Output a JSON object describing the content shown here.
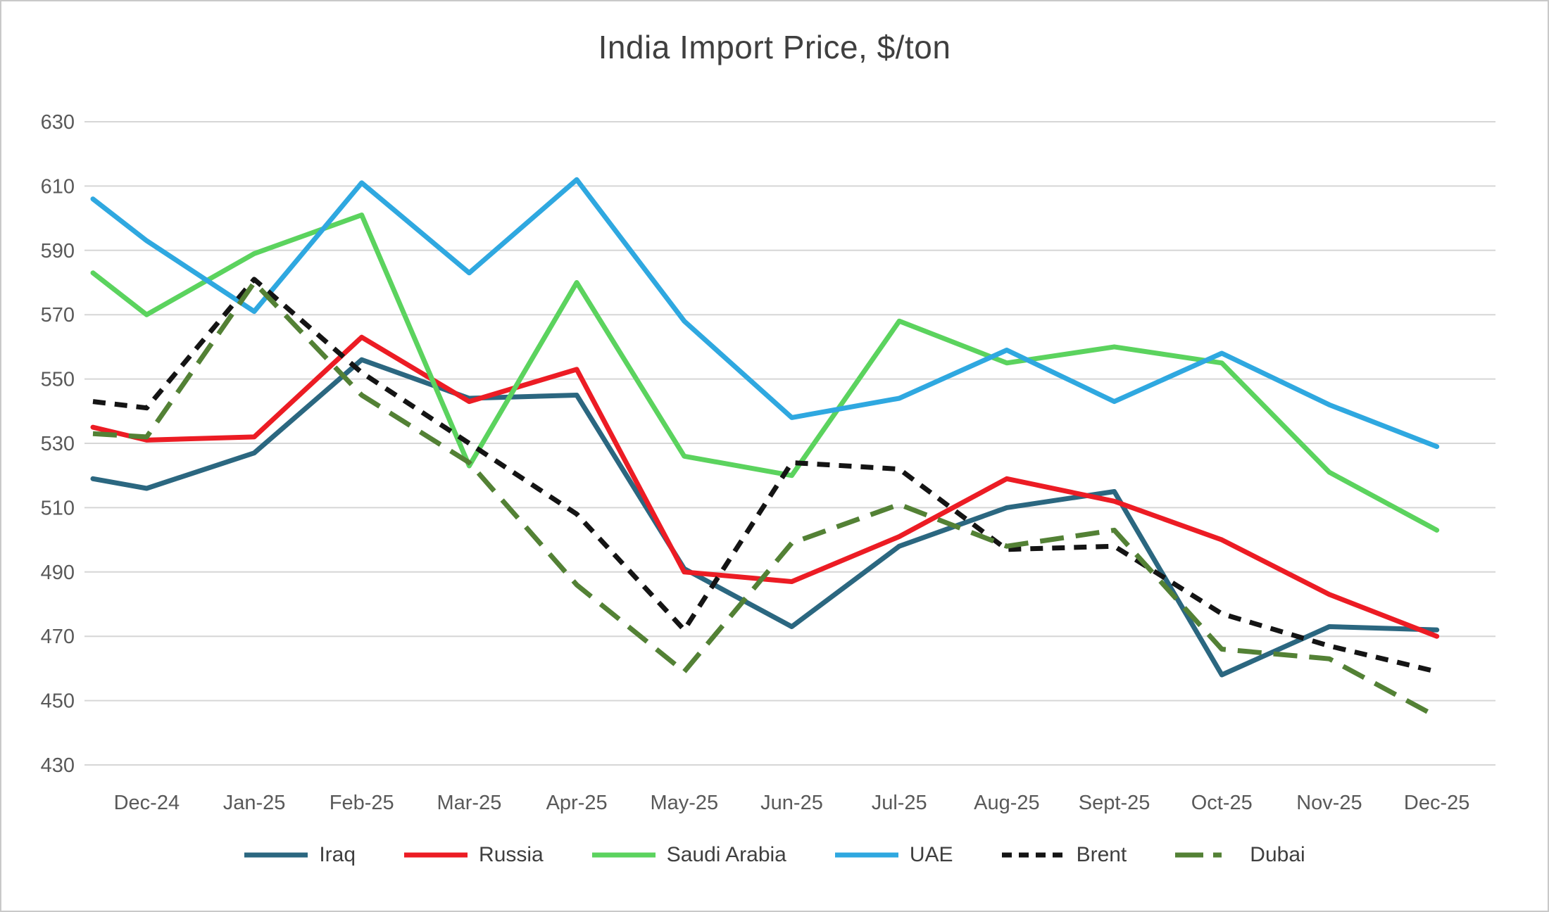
{
  "chart_data": {
    "type": "line",
    "title": "India Import Price, $/ton",
    "ylim": [
      430,
      630
    ],
    "yticks": [
      430,
      450,
      470,
      490,
      510,
      530,
      550,
      570,
      590,
      610,
      630
    ],
    "categories": [
      "Dec-24",
      "Jan-25",
      "Feb-25",
      "Mar-25",
      "Apr-25",
      "May-25",
      "Jun-25",
      "Jul-25",
      "Aug-25",
      "Sept-25",
      "Oct-25",
      "Nov-25",
      "Dec-25"
    ],
    "grid": "horizontal",
    "legend_position": "bottom",
    "series": [
      {
        "name": "Iraq",
        "color": "#2b6780",
        "dash": "solid",
        "edge_value": 519,
        "values": [
          516,
          527,
          556,
          544,
          545,
          491,
          473,
          498,
          510,
          515,
          458,
          473,
          472
        ]
      },
      {
        "name": "Russia",
        "color": "#ec1c24",
        "dash": "solid",
        "edge_value": 535,
        "values": [
          531,
          532,
          563,
          543,
          553,
          490,
          487,
          501,
          519,
          512,
          500,
          483,
          470
        ]
      },
      {
        "name": "Saudi Arabia",
        "color": "#5bd35e",
        "dash": "solid",
        "edge_value": 583,
        "values": [
          570,
          589,
          601,
          523,
          580,
          526,
          520,
          568,
          555,
          560,
          555,
          521,
          503
        ]
      },
      {
        "name": "UAE",
        "color": "#2fa8e0",
        "dash": "solid",
        "edge_value": 606,
        "values": [
          593,
          571,
          611,
          583,
          612,
          568,
          538,
          544,
          559,
          543,
          558,
          542,
          529
        ]
      },
      {
        "name": "Brent",
        "color": "#141414",
        "dash": "dashed",
        "edge_value": 543,
        "values": [
          541,
          581,
          552,
          530,
          508,
          472,
          524,
          522,
          497,
          498,
          477,
          467,
          459
        ]
      },
      {
        "name": "Dubai",
        "color": "#538135",
        "dash": "long-dash",
        "edge_value": 533,
        "values": [
          532,
          580,
          545,
          524,
          486,
          459,
          499,
          511,
          498,
          503,
          466,
          463,
          445
        ]
      }
    ],
    "colors": {
      "gridline": "#d6d6d6",
      "axis_text": "#595959",
      "title_text": "#3f3f3f",
      "legend_text": "#3f3f3f",
      "frame_border": "#c9c9c9",
      "background": "#ffffff"
    }
  }
}
